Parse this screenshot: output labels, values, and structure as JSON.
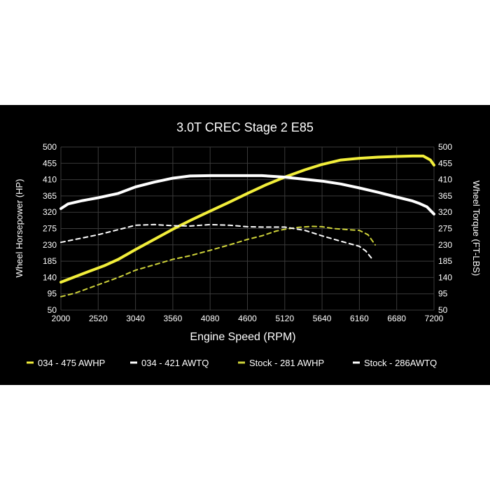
{
  "chart_data": {
    "type": "line",
    "title": "3.0T CREC Stage 2 E85",
    "xlabel": "Engine Speed (RPM)",
    "ylabel_left": "Wheel Horsepower (HP)",
    "ylabel_right": "Wheel Torque (FT-LBS)",
    "xlim": [
      2000,
      7200
    ],
    "ylim": [
      50,
      500
    ],
    "x_ticks": [
      "2000",
      "2520",
      "3040",
      "3560",
      "4080",
      "4600",
      "5120",
      "5640",
      "6160",
      "6680",
      "7200"
    ],
    "y_ticks": [
      "500",
      "455",
      "410",
      "365",
      "320",
      "275",
      "230",
      "185",
      "140",
      "95",
      "50"
    ],
    "grid": true,
    "legend_position": "bottom",
    "series": [
      {
        "name": "034 - 475 AWHP",
        "color": "#f2ee3a",
        "style": "solid",
        "points": [
          [
            2000,
            127
          ],
          [
            2300,
            150
          ],
          [
            2600,
            172
          ],
          [
            2800,
            190
          ],
          [
            3040,
            217
          ],
          [
            3300,
            245
          ],
          [
            3560,
            273
          ],
          [
            3800,
            297
          ],
          [
            4080,
            323
          ],
          [
            4350,
            348
          ],
          [
            4600,
            372
          ],
          [
            4850,
            395
          ],
          [
            5120,
            417
          ],
          [
            5400,
            437
          ],
          [
            5640,
            452
          ],
          [
            5900,
            464
          ],
          [
            6160,
            469
          ],
          [
            6420,
            472
          ],
          [
            6680,
            474
          ],
          [
            6900,
            475
          ],
          [
            7050,
            475
          ],
          [
            7150,
            464
          ],
          [
            7200,
            450
          ]
        ]
      },
      {
        "name": "034 - 421 AWTQ",
        "color": "#ffffff",
        "style": "solid",
        "points": [
          [
            2000,
            330
          ],
          [
            2100,
            343
          ],
          [
            2300,
            352
          ],
          [
            2520,
            360
          ],
          [
            2800,
            372
          ],
          [
            3040,
            390
          ],
          [
            3300,
            403
          ],
          [
            3560,
            414
          ],
          [
            3800,
            420
          ],
          [
            4080,
            421
          ],
          [
            4350,
            421
          ],
          [
            4600,
            421
          ],
          [
            4800,
            421
          ],
          [
            5120,
            417
          ],
          [
            5400,
            411
          ],
          [
            5640,
            406
          ],
          [
            5900,
            398
          ],
          [
            6160,
            387
          ],
          [
            6420,
            375
          ],
          [
            6680,
            362
          ],
          [
            6900,
            351
          ],
          [
            7000,
            344
          ],
          [
            7100,
            335
          ],
          [
            7200,
            315
          ]
        ]
      },
      {
        "name": "Stock - 281 AWHP",
        "color": "#cfd33a",
        "style": "dashed",
        "points": [
          [
            2000,
            87
          ],
          [
            2200,
            97
          ],
          [
            2520,
            120
          ],
          [
            2800,
            140
          ],
          [
            3040,
            160
          ],
          [
            3300,
            175
          ],
          [
            3560,
            190
          ],
          [
            3800,
            200
          ],
          [
            4080,
            215
          ],
          [
            4350,
            230
          ],
          [
            4600,
            245
          ],
          [
            4800,
            255
          ],
          [
            5000,
            268
          ],
          [
            5120,
            273
          ],
          [
            5300,
            278
          ],
          [
            5500,
            281
          ],
          [
            5640,
            280
          ],
          [
            5800,
            275
          ],
          [
            6000,
            272
          ],
          [
            6160,
            270
          ],
          [
            6280,
            258
          ],
          [
            6380,
            230
          ]
        ]
      },
      {
        "name": "Stock - 286AWTQ",
        "color": "#ffffff",
        "style": "dashed",
        "points": [
          [
            2000,
            237
          ],
          [
            2200,
            245
          ],
          [
            2520,
            258
          ],
          [
            2800,
            272
          ],
          [
            3040,
            284
          ],
          [
            3300,
            286
          ],
          [
            3560,
            283
          ],
          [
            3800,
            282
          ],
          [
            4080,
            286
          ],
          [
            4350,
            284
          ],
          [
            4600,
            280
          ],
          [
            4800,
            279
          ],
          [
            5120,
            279
          ],
          [
            5400,
            270
          ],
          [
            5640,
            255
          ],
          [
            5900,
            240
          ],
          [
            6160,
            226
          ],
          [
            6250,
            213
          ],
          [
            6350,
            188
          ]
        ]
      }
    ]
  }
}
